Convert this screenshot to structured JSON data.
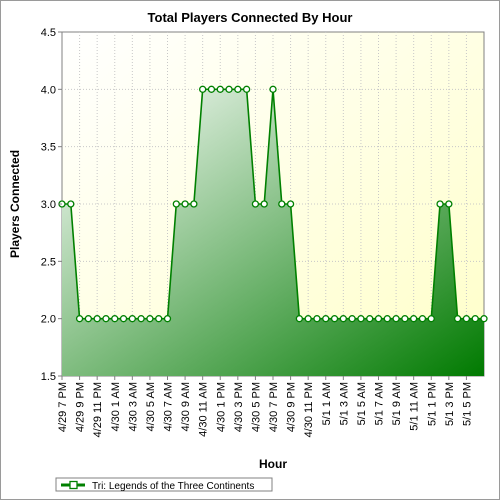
{
  "chart_data": {
    "type": "area",
    "title": "Total Players Connected By Hour",
    "xlabel": "Hour",
    "ylabel": "Players Connected",
    "ylim": [
      1.5,
      4.5
    ],
    "yticks": [
      "1.5",
      "2.0",
      "2.5",
      "3.0",
      "3.5",
      "4.0",
      "4.5"
    ],
    "grid": true,
    "legend_position": "bottom-left",
    "x_tick_labels": [
      "4/29 7 PM",
      "4/29 9 PM",
      "4/29 11 PM",
      "4/30 1 AM",
      "4/30 3 AM",
      "4/30 5 AM",
      "4/30 7 AM",
      "4/30 9 AM",
      "4/30 11 AM",
      "4/30 1 PM",
      "4/30 3 PM",
      "4/30 5 PM",
      "4/30 7 PM",
      "4/30 9 PM",
      "4/30 11 PM",
      "5/1 1 AM",
      "5/1 3 AM",
      "5/1 5 AM",
      "5/1 7 AM",
      "5/1 9 AM",
      "5/1 11 AM",
      "5/1 1 PM",
      "5/1 3 PM",
      "5/1 5 PM"
    ],
    "series": [
      {
        "name": "Tri: Legends of the Three Continents",
        "color": "#008000",
        "values": [
          3,
          3,
          2,
          2,
          2,
          2,
          2,
          2,
          2,
          2,
          2,
          2,
          2,
          3,
          3,
          3,
          4,
          4,
          4,
          4,
          4,
          4,
          3,
          3,
          4,
          3,
          3,
          2,
          2,
          2,
          2,
          2,
          2,
          2,
          2,
          2,
          2,
          2,
          2,
          2,
          2,
          2,
          2,
          3,
          3,
          2,
          2,
          2,
          2
        ]
      }
    ]
  }
}
